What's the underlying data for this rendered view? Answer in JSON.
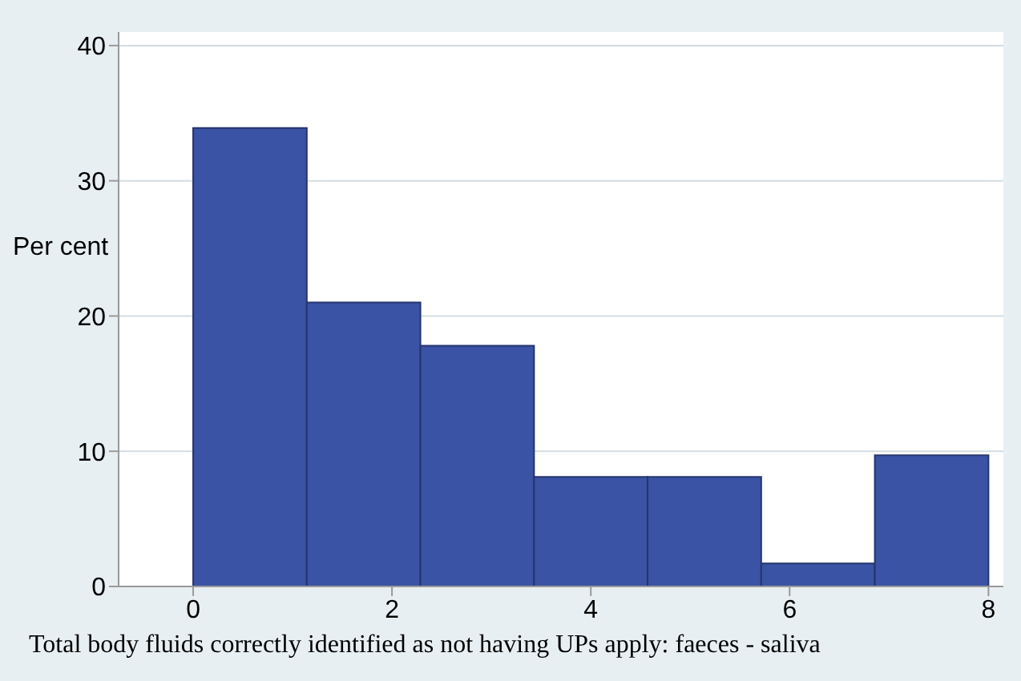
{
  "chart_data": {
    "type": "histogram",
    "xlabel": "Total body fluids correctly identified as not having UPs apply: faeces - saliva",
    "ylabel": "Per cent",
    "bins": [
      0,
      1.143,
      2.286,
      3.429,
      4.571,
      5.714,
      6.857,
      8
    ],
    "values": [
      33.9,
      21.0,
      17.8,
      8.1,
      8.1,
      1.7,
      9.7
    ],
    "color": "#3a53a4",
    "xlim": [
      -0.75,
      8.15
    ],
    "xticks": [
      0,
      2,
      4,
      6,
      8
    ],
    "ylim": [
      0,
      41
    ],
    "yticks": [
      0,
      10,
      20,
      30,
      40
    ],
    "grid": "y"
  }
}
